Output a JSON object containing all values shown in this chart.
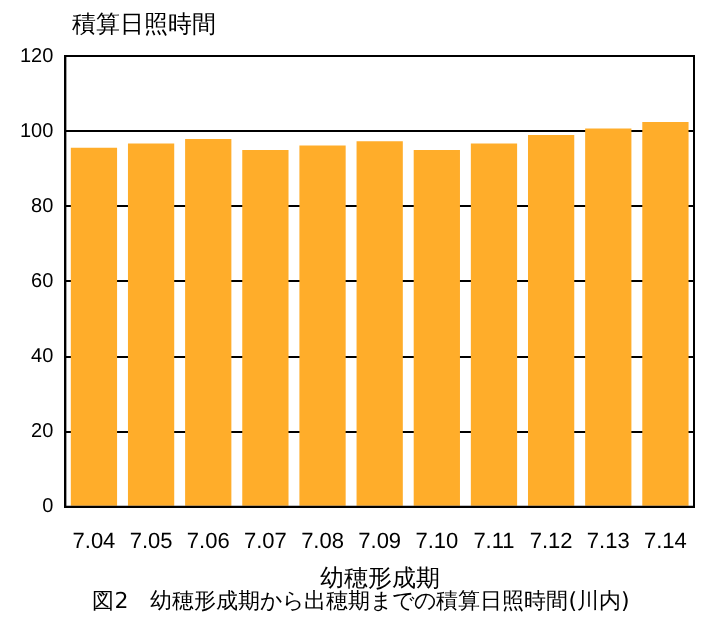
{
  "chart_data": {
    "type": "bar",
    "ylabel": "積算日照時間",
    "xlabel": "幼穂形成期",
    "categories": [
      "7.04",
      "7.05",
      "7.06",
      "7.07",
      "7.08",
      "7.09",
      "7.10",
      "7.11",
      "7.12",
      "7.13",
      "7.14"
    ],
    "values": [
      95.6,
      96.7,
      97.9,
      95.0,
      96.2,
      97.3,
      95.0,
      96.7,
      99.0,
      100.7,
      102.4
    ],
    "color": "#ffad2a",
    "ylim": [
      0,
      120
    ],
    "yticks": [
      0,
      20,
      40,
      60,
      80,
      100,
      120
    ],
    "grid": "y",
    "legend": false,
    "annotations": [
      "図2　幼穂形成期から出穂期までの積算日照時間(川内)"
    ]
  }
}
